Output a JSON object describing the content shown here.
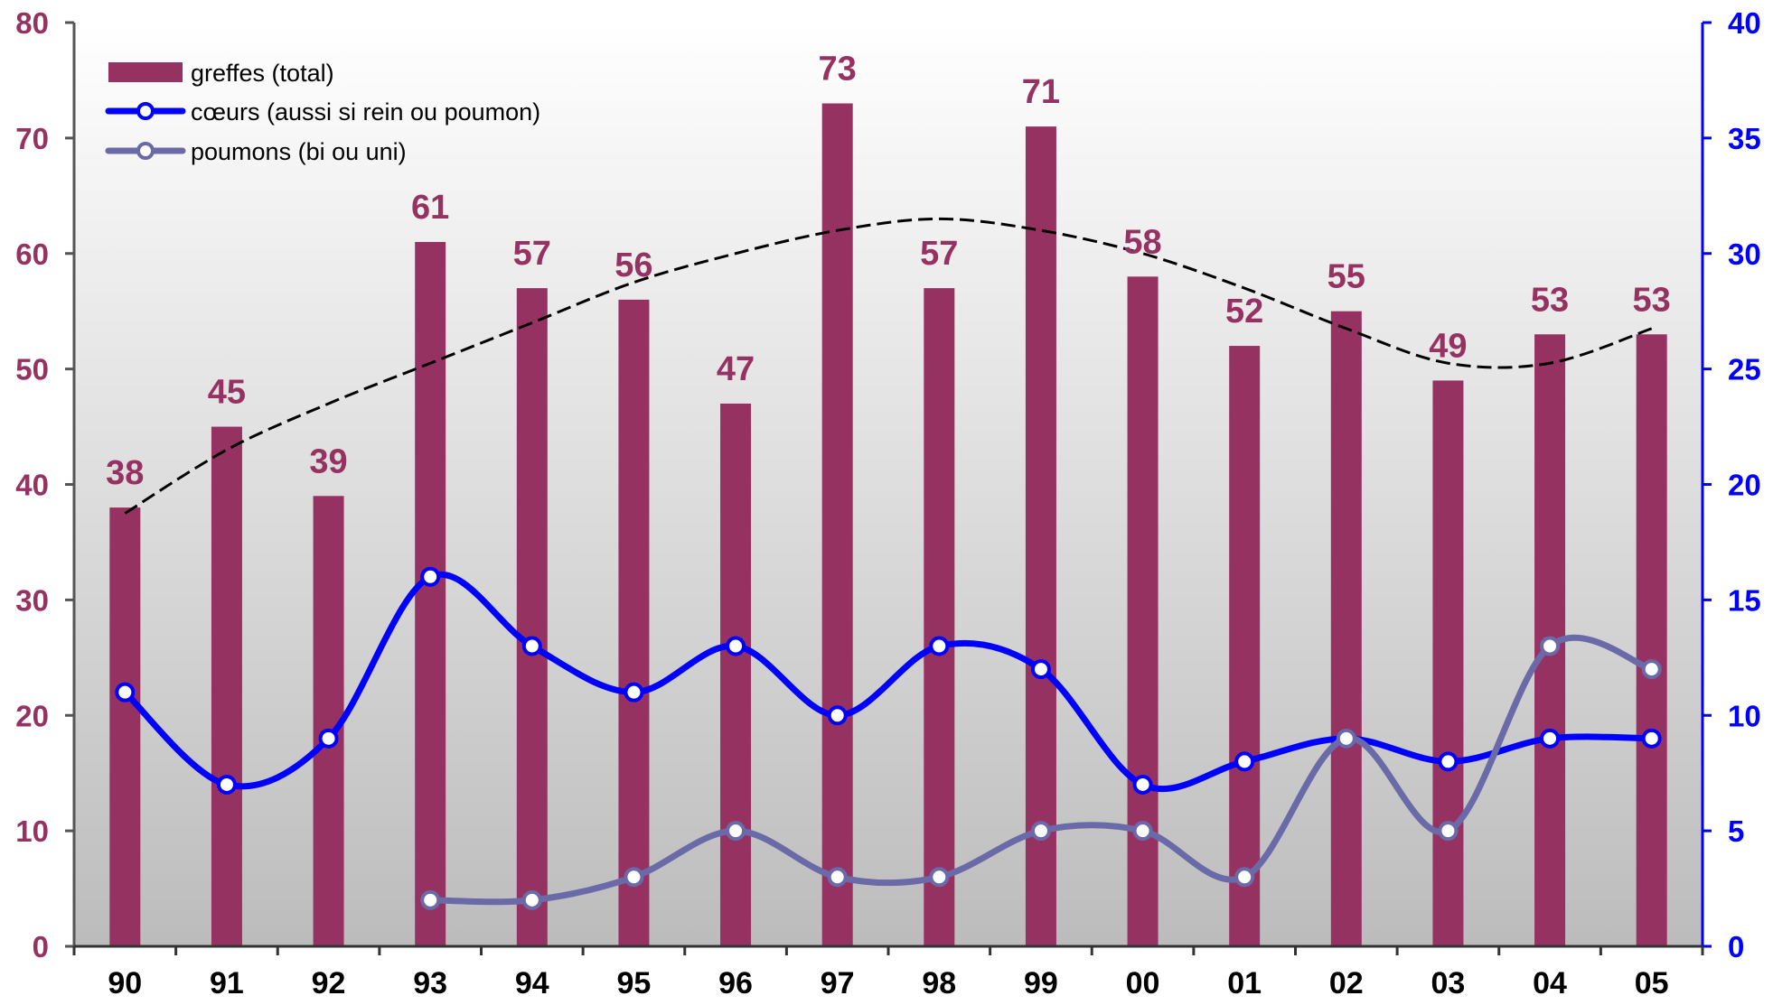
{
  "chart_data": {
    "type": "bar",
    "categories": [
      "90",
      "91",
      "92",
      "93",
      "94",
      "95",
      "96",
      "97",
      "98",
      "99",
      "00",
      "01",
      "02",
      "03",
      "04",
      "05"
    ],
    "series": [
      {
        "name": "greffes (total)",
        "type": "bar",
        "axis": "left",
        "color": "#963262",
        "values": [
          38,
          45,
          39,
          61,
          57,
          56,
          47,
          73,
          57,
          71,
          58,
          52,
          55,
          49,
          53,
          53
        ],
        "data_labels": [
          "38",
          "45",
          "39",
          "61",
          "57",
          "56",
          "47",
          "73",
          "57",
          "71",
          "58",
          "52",
          "55",
          "49",
          "53",
          "53"
        ]
      },
      {
        "name": "cœurs (aussi si rein ou poumon)",
        "type": "line",
        "axis": "right",
        "color": "#0000ff",
        "values": [
          11,
          7,
          9,
          16,
          13,
          11,
          13,
          10,
          13,
          12,
          7,
          8,
          9,
          8,
          9,
          9
        ]
      },
      {
        "name": "poumons (bi ou uni)",
        "type": "line",
        "axis": "right",
        "color": "#6a6aa8",
        "values": [
          null,
          null,
          null,
          2,
          2,
          3,
          5,
          3,
          3,
          5,
          5,
          3,
          9,
          5,
          13,
          12
        ]
      },
      {
        "type": "trendline",
        "axis": "left",
        "style": "dashed",
        "color": "#000000",
        "values": [
          37.5,
          43,
          47,
          50.5,
          54,
          57.5,
          60,
          62,
          63,
          62,
          60,
          57,
          53.5,
          50.5,
          50.5,
          53.5
        ]
      }
    ],
    "y_left": {
      "ticks": [
        "0",
        "10",
        "20",
        "30",
        "40",
        "50",
        "60",
        "70",
        "80"
      ],
      "range": [
        0,
        80
      ],
      "color": "#963262"
    },
    "y_right": {
      "ticks": [
        "0",
        "5",
        "10",
        "15",
        "20",
        "25",
        "30",
        "35",
        "40"
      ],
      "range": [
        0,
        40
      ],
      "color": "#0000ff"
    },
    "title": "",
    "xlabel": "",
    "ylabel": "",
    "legend_position": "top-left",
    "grid": false,
    "background": "vertical gradient white to grey"
  }
}
